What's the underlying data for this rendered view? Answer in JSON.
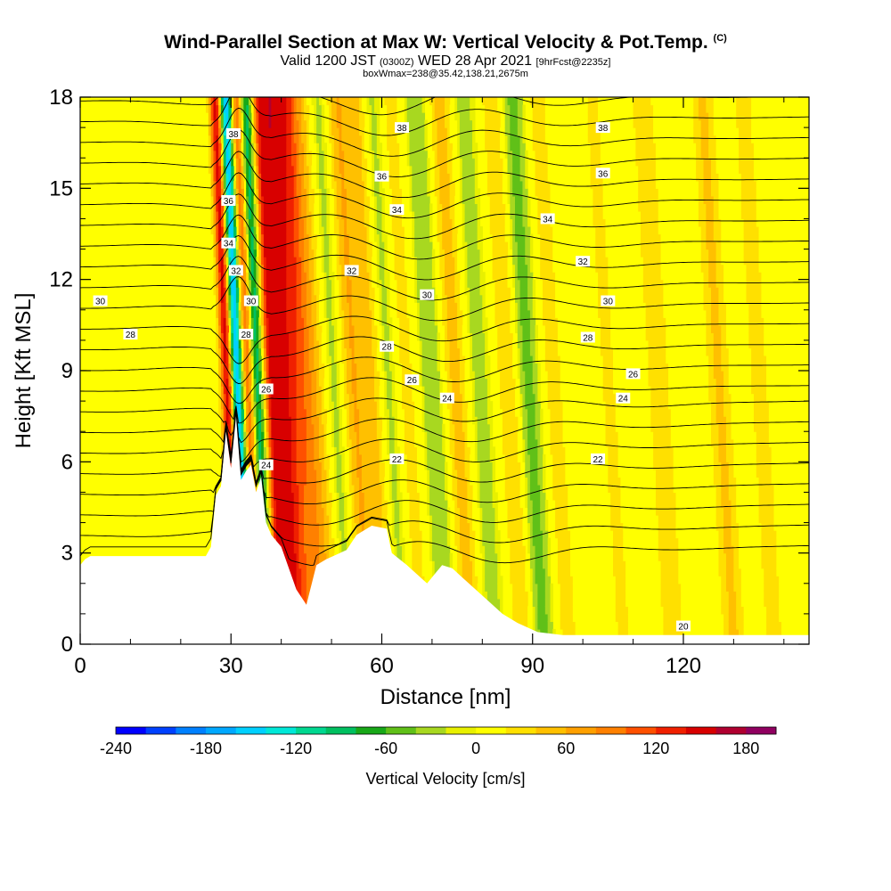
{
  "header": {
    "title": "Wind-Parallel Section at Max W: Vertical Velocity & Pot.Temp.",
    "copyright": "(C)",
    "valid_prefix": "Valid 1200 JST",
    "valid_utc": "(0300Z)",
    "valid_date": "WED 28 Apr 2021",
    "forecast": "[9hrFcst@2235z]",
    "subtitle": "boxWmax=238@35.42,138.21,2675m"
  },
  "chart_data": {
    "type": "heatmap",
    "xlabel": "Distance [nm]",
    "ylabel": "Height [Kft MSL]",
    "xlim": [
      0,
      145
    ],
    "ylim": [
      0,
      18
    ],
    "xticks": [
      "0",
      "30",
      "60",
      "90",
      "120"
    ],
    "xtick_values": [
      0,
      30,
      60,
      90,
      120
    ],
    "yticks": [
      "0",
      "3",
      "6",
      "9",
      "12",
      "15",
      "18"
    ],
    "ytick_values": [
      0,
      3,
      6,
      9,
      12,
      15,
      18
    ],
    "colorbar": {
      "label": "Vertical Velocity [cm/s]",
      "tick_labels": [
        "-240",
        "-180",
        "-120",
        "-60",
        "0",
        "60",
        "120",
        "180"
      ],
      "tick_values": [
        -240,
        -180,
        -120,
        -60,
        0,
        60,
        120,
        180
      ],
      "range": [
        -240,
        200
      ],
      "step": 20,
      "colors": [
        "#0000ff",
        "#0040ff",
        "#0080ff",
        "#00a8ff",
        "#00d0ff",
        "#00e8d8",
        "#00d890",
        "#00c060",
        "#18a818",
        "#60c018",
        "#a8d820",
        "#e8f000",
        "#ffff00",
        "#ffe000",
        "#ffc000",
        "#ffa000",
        "#ff8000",
        "#ff5000",
        "#f02000",
        "#d80000",
        "#b00030",
        "#900060"
      ]
    },
    "max_w_cm_s": 238,
    "terrain": {
      "x": [
        0,
        1,
        2,
        8,
        25,
        26,
        27,
        28,
        29,
        30,
        31,
        32,
        33,
        34,
        35,
        36,
        37,
        38,
        40,
        43,
        45,
        47,
        49,
        53,
        55,
        58,
        61,
        62,
        65,
        69,
        71,
        72,
        74,
        76,
        80,
        84,
        87,
        91,
        96,
        100,
        104,
        110,
        120,
        130,
        140,
        145
      ],
      "h": [
        2.6,
        2.8,
        2.9,
        2.9,
        2.9,
        3.2,
        4.9,
        5.2,
        7.0,
        5.8,
        7.5,
        5.4,
        5.7,
        5.9,
        5.0,
        5.5,
        4.0,
        3.6,
        3.2,
        1.8,
        1.3,
        2.6,
        2.8,
        3.1,
        3.6,
        3.9,
        3.8,
        3.0,
        2.6,
        2.0,
        2.4,
        2.6,
        2.5,
        2.2,
        1.6,
        1.0,
        0.7,
        0.4,
        0.3,
        0.3,
        0.3,
        0.3,
        0.3,
        0.3,
        0.3,
        0.3
      ]
    },
    "w_features": [
      {
        "x": 30,
        "w": 160
      },
      {
        "x": 32,
        "w": -180
      },
      {
        "x": 34,
        "w": 110
      },
      {
        "x": 36,
        "w": -100
      },
      {
        "x": 39,
        "w": 70
      },
      {
        "x": 41,
        "w": 130
      },
      {
        "x": 44,
        "w": 80
      },
      {
        "x": 47,
        "w": 70
      },
      {
        "x": 50,
        "w": 40
      },
      {
        "x": 52,
        "w": -40
      },
      {
        "x": 56,
        "w": 60
      },
      {
        "x": 60,
        "w": 50
      },
      {
        "x": 63,
        "w": -35
      },
      {
        "x": 67,
        "w": 30
      },
      {
        "x": 72,
        "w": -40
      },
      {
        "x": 77,
        "w": 50
      },
      {
        "x": 82,
        "w": -30
      },
      {
        "x": 88,
        "w": 40
      },
      {
        "x": 92,
        "w": -50
      },
      {
        "x": 97,
        "w": 30
      },
      {
        "x": 108,
        "w": 25
      },
      {
        "x": 118,
        "w": 40
      },
      {
        "x": 130,
        "w": 45
      },
      {
        "x": 138,
        "w": 30
      }
    ],
    "theta_labels": [
      {
        "text": "38",
        "x": 30.5,
        "y": 16.8
      },
      {
        "text": "38",
        "x": 64,
        "y": 17.0
      },
      {
        "text": "38",
        "x": 104,
        "y": 17.0
      },
      {
        "text": "36",
        "x": 29.5,
        "y": 14.6
      },
      {
        "text": "36",
        "x": 60,
        "y": 15.4
      },
      {
        "text": "36",
        "x": 104,
        "y": 15.5
      },
      {
        "text": "34",
        "x": 29.5,
        "y": 13.2
      },
      {
        "text": "34",
        "x": 63,
        "y": 14.3
      },
      {
        "text": "34",
        "x": 93,
        "y": 14.0
      },
      {
        "text": "32",
        "x": 31,
        "y": 12.3
      },
      {
        "text": "32",
        "x": 54,
        "y": 12.3
      },
      {
        "text": "32",
        "x": 100,
        "y": 12.6
      },
      {
        "text": "30",
        "x": 4,
        "y": 11.3
      },
      {
        "text": "30",
        "x": 34,
        "y": 11.3
      },
      {
        "text": "30",
        "x": 69,
        "y": 11.5
      },
      {
        "text": "30",
        "x": 105,
        "y": 11.3
      },
      {
        "text": "28",
        "x": 10,
        "y": 10.2
      },
      {
        "text": "28",
        "x": 33,
        "y": 10.2
      },
      {
        "text": "28",
        "x": 61,
        "y": 9.8
      },
      {
        "text": "28",
        "x": 101,
        "y": 10.1
      },
      {
        "text": "26",
        "x": 37,
        "y": 8.4
      },
      {
        "text": "26",
        "x": 66,
        "y": 8.7
      },
      {
        "text": "26",
        "x": 110,
        "y": 8.9
      },
      {
        "text": "24",
        "x": 37,
        "y": 5.9
      },
      {
        "text": "24",
        "x": 73,
        "y": 8.1
      },
      {
        "text": "24",
        "x": 108,
        "y": 8.1
      },
      {
        "text": "22",
        "x": 63,
        "y": 6.1
      },
      {
        "text": "22",
        "x": 103,
        "y": 6.1
      },
      {
        "text": "20",
        "x": 120,
        "y": 0.6
      }
    ]
  }
}
